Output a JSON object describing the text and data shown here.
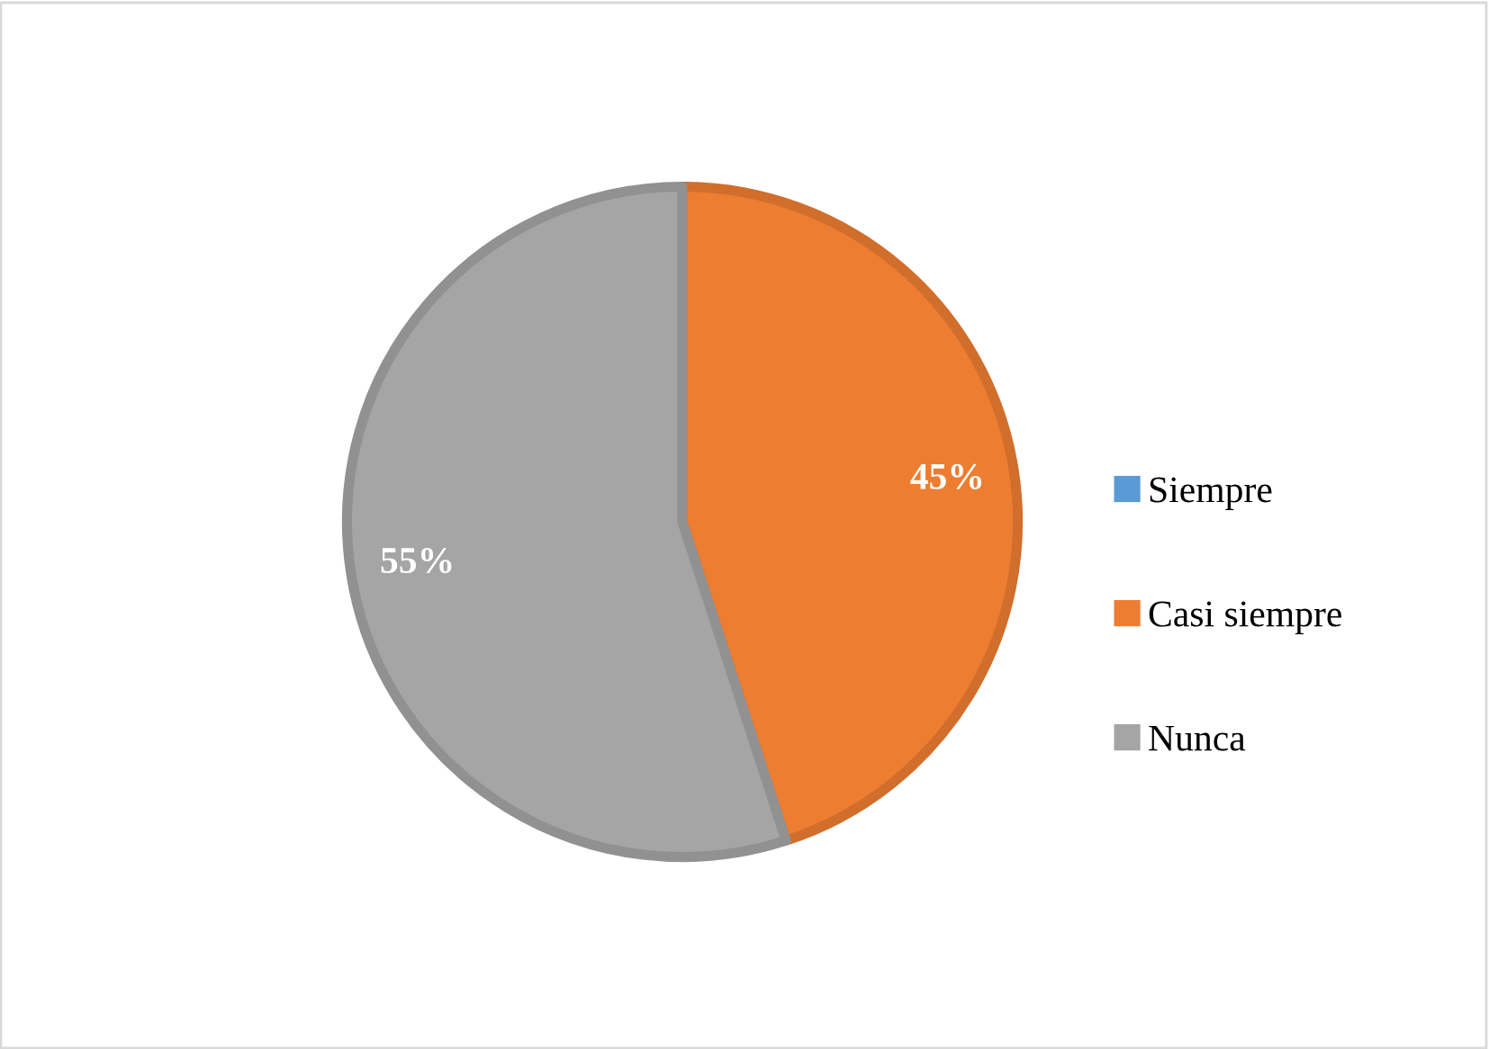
{
  "chart_data": {
    "type": "pie",
    "categories": [
      "Siempre",
      "Casi siempre",
      "Nunca"
    ],
    "values": [
      0,
      45,
      55
    ],
    "colors": [
      "#5b9bd5",
      "#ed7d31",
      "#a5a5a5"
    ],
    "value_labels": [
      null,
      "45%",
      "55%"
    ],
    "legend": "right"
  }
}
